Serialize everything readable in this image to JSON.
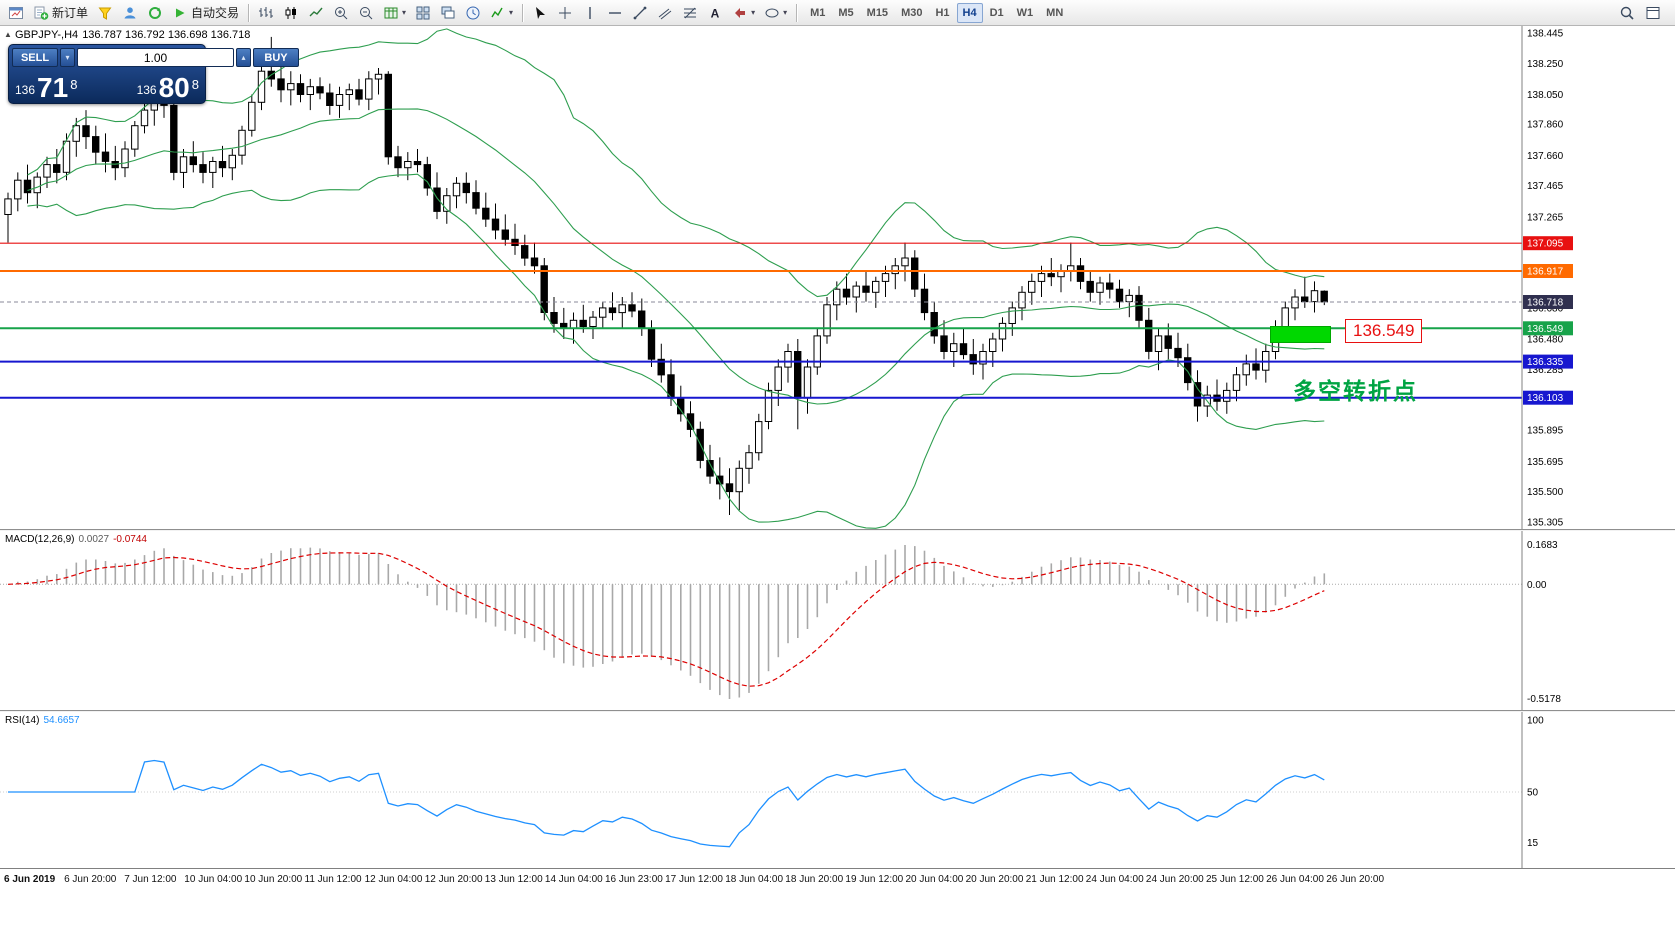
{
  "toolbar": {
    "new_order_label": "新订单",
    "auto_trading_label": "自动交易",
    "timeframes": [
      "M1",
      "M5",
      "M15",
      "M30",
      "H1",
      "H4",
      "D1",
      "W1",
      "MN"
    ],
    "active_timeframe": "H4",
    "icons": [
      "chart-window-icon",
      "new-order-icon",
      "quotes-icon",
      "profile-icon",
      "refresh-icon",
      "auto-trading-play-icon",
      "bars-chart-icon",
      "candles-chart-icon",
      "line-chart-icon",
      "zoom-in-icon",
      "zoom-out-icon",
      "new-chart-icon",
      "tile-windows-icon",
      "cascade-windows-icon",
      "clock-icon",
      "indicators-icon",
      "cursor-icon",
      "crosshair-icon",
      "vertical-line-icon",
      "horizontal-line-icon",
      "trendline-icon",
      "channel-icon",
      "fibonacci-icon",
      "text-icon",
      "arrows-icon",
      "shapes-icon",
      "search-icon",
      "window-icon"
    ]
  },
  "symbol_header": {
    "symbol": "GBPJPY-,H4",
    "ohlc": "136.787 136.792 136.698 136.718"
  },
  "trade_panel": {
    "sell_label": "SELL",
    "buy_label": "BUY",
    "volume": "1.00",
    "sell_price": {
      "prefix": "136",
      "big": "71",
      "sup": "8"
    },
    "buy_price": {
      "prefix": "136",
      "big": "80",
      "sup": "8"
    }
  },
  "chart_data": {
    "type": "candlestick",
    "symbol": "GBPJPY",
    "timeframe": "H4",
    "price_axis": {
      "max": 138.445,
      "min": 135.305,
      "ticks": [
        "138.445",
        "138.250",
        "138.050",
        "137.860",
        "137.660",
        "137.465",
        "137.265",
        "136.680",
        "136.480",
        "136.285",
        "135.895",
        "135.695",
        "135.500",
        "135.305"
      ]
    },
    "hlines": [
      {
        "label": "137.095",
        "price": 137.095,
        "color": "#e81010",
        "width": 1.2
      },
      {
        "label": "136.917",
        "price": 136.917,
        "color": "#ff6a00",
        "width": 2
      },
      {
        "label": "136.718",
        "price": 136.718,
        "color": "#2f2f4f",
        "width": 1,
        "style": "current"
      },
      {
        "label": "136.549",
        "price": 136.549,
        "color": "#17a34a",
        "width": 2
      },
      {
        "label": "136.335",
        "price": 136.335,
        "color": "#1717cf",
        "width": 2
      },
      {
        "label": "136.103",
        "price": 136.103,
        "color": "#1717cf",
        "width": 2
      }
    ],
    "bollinger": {
      "period": 20,
      "deviation": 2,
      "color": "#2e9e4f"
    },
    "annotations": {
      "price_callout": "136.549",
      "note_text": "多空转折点",
      "zone_color": "#00d800",
      "note_color": "#00a443",
      "callout_color": "#e81010"
    },
    "candles": [
      [
        137.28,
        137.42,
        137.1,
        137.38
      ],
      [
        137.38,
        137.55,
        137.3,
        137.5
      ],
      [
        137.5,
        137.6,
        137.35,
        137.42
      ],
      [
        137.42,
        137.55,
        137.32,
        137.52
      ],
      [
        137.52,
        137.65,
        137.45,
        137.6
      ],
      [
        137.6,
        137.7,
        137.48,
        137.55
      ],
      [
        137.55,
        137.8,
        137.5,
        137.75
      ],
      [
        137.75,
        137.9,
        137.65,
        137.85
      ],
      [
        137.85,
        137.95,
        137.7,
        137.78
      ],
      [
        137.78,
        137.85,
        137.6,
        137.68
      ],
      [
        137.68,
        137.8,
        137.55,
        137.62
      ],
      [
        137.62,
        137.72,
        137.5,
        137.58
      ],
      [
        137.58,
        137.75,
        137.52,
        137.7
      ],
      [
        137.7,
        137.88,
        137.65,
        137.85
      ],
      [
        137.85,
        138.0,
        137.8,
        137.95
      ],
      [
        137.95,
        138.05,
        137.85,
        138.0
      ],
      [
        138.0,
        138.08,
        137.9,
        137.98
      ],
      [
        137.98,
        138.02,
        137.5,
        137.55
      ],
      [
        137.55,
        137.7,
        137.45,
        137.65
      ],
      [
        137.65,
        137.75,
        137.55,
        137.6
      ],
      [
        137.6,
        137.68,
        137.48,
        137.55
      ],
      [
        137.55,
        137.65,
        137.45,
        137.62
      ],
      [
        137.62,
        137.72,
        137.52,
        137.58
      ],
      [
        137.58,
        137.7,
        137.5,
        137.66
      ],
      [
        137.66,
        137.85,
        137.6,
        137.82
      ],
      [
        137.82,
        138.05,
        137.78,
        138.0
      ],
      [
        138.0,
        138.25,
        137.95,
        138.2
      ],
      [
        138.2,
        138.42,
        138.1,
        138.15
      ],
      [
        138.15,
        138.3,
        138.0,
        138.08
      ],
      [
        138.08,
        138.2,
        137.98,
        138.12
      ],
      [
        138.12,
        138.18,
        138.0,
        138.05
      ],
      [
        138.05,
        138.15,
        137.95,
        138.1
      ],
      [
        138.1,
        138.16,
        138.02,
        138.06
      ],
      [
        138.06,
        138.12,
        137.92,
        137.98
      ],
      [
        137.98,
        138.1,
        137.9,
        138.05
      ],
      [
        138.05,
        138.12,
        137.95,
        138.08
      ],
      [
        138.08,
        138.15,
        137.98,
        138.02
      ],
      [
        138.02,
        138.2,
        137.95,
        138.15
      ],
      [
        138.15,
        138.22,
        138.05,
        138.18
      ],
      [
        138.18,
        138.2,
        137.6,
        137.65
      ],
      [
        137.65,
        137.72,
        137.52,
        137.58
      ],
      [
        137.58,
        137.68,
        137.5,
        137.62
      ],
      [
        137.62,
        137.7,
        137.55,
        137.6
      ],
      [
        137.6,
        137.65,
        137.4,
        137.45
      ],
      [
        137.45,
        137.55,
        137.25,
        137.3
      ],
      [
        137.3,
        137.45,
        137.22,
        137.4
      ],
      [
        137.4,
        137.52,
        137.32,
        137.48
      ],
      [
        137.48,
        137.55,
        137.35,
        137.42
      ],
      [
        137.42,
        137.5,
        137.28,
        137.32
      ],
      [
        137.32,
        137.42,
        137.2,
        137.25
      ],
      [
        137.25,
        137.35,
        137.12,
        137.18
      ],
      [
        137.18,
        137.28,
        137.08,
        137.12
      ],
      [
        137.12,
        137.22,
        137.02,
        137.08
      ],
      [
        137.08,
        137.15,
        136.95,
        137.0
      ],
      [
        137.0,
        137.1,
        136.9,
        136.95
      ],
      [
        136.95,
        137.0,
        136.6,
        136.65
      ],
      [
        136.65,
        136.75,
        136.52,
        136.58
      ],
      [
        136.58,
        136.68,
        136.48,
        136.55
      ],
      [
        136.55,
        136.65,
        136.45,
        136.6
      ],
      [
        136.6,
        136.7,
        136.52,
        136.56
      ],
      [
        136.56,
        136.66,
        136.48,
        136.62
      ],
      [
        136.62,
        136.72,
        136.55,
        136.68
      ],
      [
        136.68,
        136.78,
        136.6,
        136.65
      ],
      [
        136.65,
        136.75,
        136.55,
        136.7
      ],
      [
        136.7,
        136.78,
        136.62,
        136.66
      ],
      [
        136.66,
        136.74,
        136.5,
        136.55
      ],
      [
        136.55,
        136.6,
        136.3,
        136.35
      ],
      [
        136.35,
        136.45,
        136.2,
        136.25
      ],
      [
        136.25,
        136.35,
        136.05,
        136.1
      ],
      [
        136.1,
        136.18,
        135.95,
        136.0
      ],
      [
        136.0,
        136.08,
        135.85,
        135.9
      ],
      [
        135.9,
        135.95,
        135.65,
        135.7
      ],
      [
        135.7,
        135.8,
        135.55,
        135.6
      ],
      [
        135.6,
        135.72,
        135.45,
        135.55
      ],
      [
        135.55,
        135.65,
        135.35,
        135.5
      ],
      [
        135.5,
        135.7,
        135.38,
        135.65
      ],
      [
        135.65,
        135.8,
        135.55,
        135.75
      ],
      [
        135.75,
        136.0,
        135.7,
        135.95
      ],
      [
        135.95,
        136.2,
        135.9,
        136.15
      ],
      [
        136.15,
        136.35,
        136.05,
        136.3
      ],
      [
        136.3,
        136.45,
        136.2,
        136.4
      ],
      [
        136.4,
        136.48,
        135.9,
        136.1
      ],
      [
        136.1,
        136.35,
        136.0,
        136.3
      ],
      [
        136.3,
        136.55,
        136.25,
        136.5
      ],
      [
        136.5,
        136.75,
        136.45,
        136.7
      ],
      [
        136.7,
        136.85,
        136.6,
        136.8
      ],
      [
        136.8,
        136.9,
        136.7,
        136.75
      ],
      [
        136.75,
        136.85,
        136.65,
        136.82
      ],
      [
        136.82,
        136.92,
        136.72,
        136.78
      ],
      [
        136.78,
        136.88,
        136.68,
        136.85
      ],
      [
        136.85,
        136.95,
        136.75,
        136.9
      ],
      [
        136.9,
        137.0,
        136.8,
        136.95
      ],
      [
        136.95,
        137.1,
        136.85,
        137.0
      ],
      [
        137.0,
        137.05,
        136.75,
        136.8
      ],
      [
        136.8,
        136.9,
        136.6,
        136.65
      ],
      [
        136.65,
        136.72,
        136.45,
        136.5
      ],
      [
        136.5,
        136.6,
        136.35,
        136.4
      ],
      [
        136.4,
        136.52,
        136.3,
        136.45
      ],
      [
        136.45,
        136.55,
        136.35,
        136.38
      ],
      [
        136.38,
        136.48,
        136.25,
        136.32
      ],
      [
        136.32,
        136.45,
        136.22,
        136.4
      ],
      [
        136.4,
        136.52,
        136.3,
        136.48
      ],
      [
        136.48,
        136.62,
        136.4,
        136.58
      ],
      [
        136.58,
        136.72,
        136.5,
        136.68
      ],
      [
        136.68,
        136.82,
        136.6,
        136.78
      ],
      [
        136.78,
        136.9,
        136.7,
        136.85
      ],
      [
        136.85,
        136.95,
        136.75,
        136.9
      ],
      [
        136.9,
        137.0,
        136.82,
        136.88
      ],
      [
        136.88,
        136.96,
        136.78,
        136.92
      ],
      [
        136.92,
        137.1,
        136.85,
        136.95
      ],
      [
        136.95,
        137.0,
        136.8,
        136.85
      ],
      [
        136.85,
        136.92,
        136.72,
        136.78
      ],
      [
        136.78,
        136.88,
        136.7,
        136.84
      ],
      [
        136.84,
        136.9,
        136.74,
        136.8
      ],
      [
        136.8,
        136.86,
        136.68,
        136.72
      ],
      [
        136.72,
        136.8,
        136.62,
        136.76
      ],
      [
        136.76,
        136.82,
        136.55,
        136.6
      ],
      [
        136.6,
        136.68,
        136.35,
        136.4
      ],
      [
        136.4,
        136.55,
        136.28,
        136.5
      ],
      [
        136.5,
        136.58,
        136.35,
        136.42
      ],
      [
        136.42,
        136.52,
        136.3,
        136.36
      ],
      [
        136.36,
        136.45,
        136.15,
        136.2
      ],
      [
        136.2,
        136.28,
        135.95,
        136.05
      ],
      [
        136.05,
        136.18,
        135.98,
        136.12
      ],
      [
        136.12,
        136.22,
        136.02,
        136.08
      ],
      [
        136.08,
        136.2,
        136.0,
        136.15
      ],
      [
        136.15,
        136.3,
        136.08,
        136.25
      ],
      [
        136.25,
        136.38,
        136.18,
        136.32
      ],
      [
        136.32,
        136.42,
        136.22,
        136.28
      ],
      [
        136.28,
        136.45,
        136.2,
        136.4
      ],
      [
        136.4,
        136.6,
        136.35,
        136.55
      ],
      [
        136.55,
        136.72,
        136.48,
        136.68
      ],
      [
        136.68,
        136.8,
        136.6,
        136.75
      ],
      [
        136.75,
        136.88,
        136.68,
        136.72
      ],
      [
        136.72,
        136.85,
        136.65,
        136.79
      ],
      [
        136.787,
        136.792,
        136.698,
        136.718
      ]
    ],
    "time_labels": [
      "6 Jun 2019",
      "6 Jun 20:00",
      "7 Jun 12:00",
      "10 Jun 04:00",
      "10 Jun 20:00",
      "11 Jun 12:00",
      "12 Jun 04:00",
      "12 Jun 20:00",
      "13 Jun 12:00",
      "14 Jun 04:00",
      "16 Jun 23:00",
      "17 Jun 12:00",
      "18 Jun 04:00",
      "18 Jun 20:00",
      "19 Jun 12:00",
      "20 Jun 04:00",
      "20 Jun 20:00",
      "21 Jun 12:00",
      "24 Jun 04:00",
      "24 Jun 20:00",
      "25 Jun 12:00",
      "26 Jun 04:00",
      "26 Jun 20:00"
    ],
    "macd": {
      "name": "MACD(12,26,9)",
      "main": "0.0027",
      "signal": "-0.0744",
      "scale": [
        "0.1683",
        "0.00",
        "-0.5178"
      ],
      "hist_color": "#a8a8a8",
      "signal_color": "#dd0000"
    },
    "rsi": {
      "name": "RSI(14)",
      "value": "54.6657",
      "scale": [
        "100",
        "50",
        "15"
      ],
      "color": "#1e90ff"
    }
  }
}
